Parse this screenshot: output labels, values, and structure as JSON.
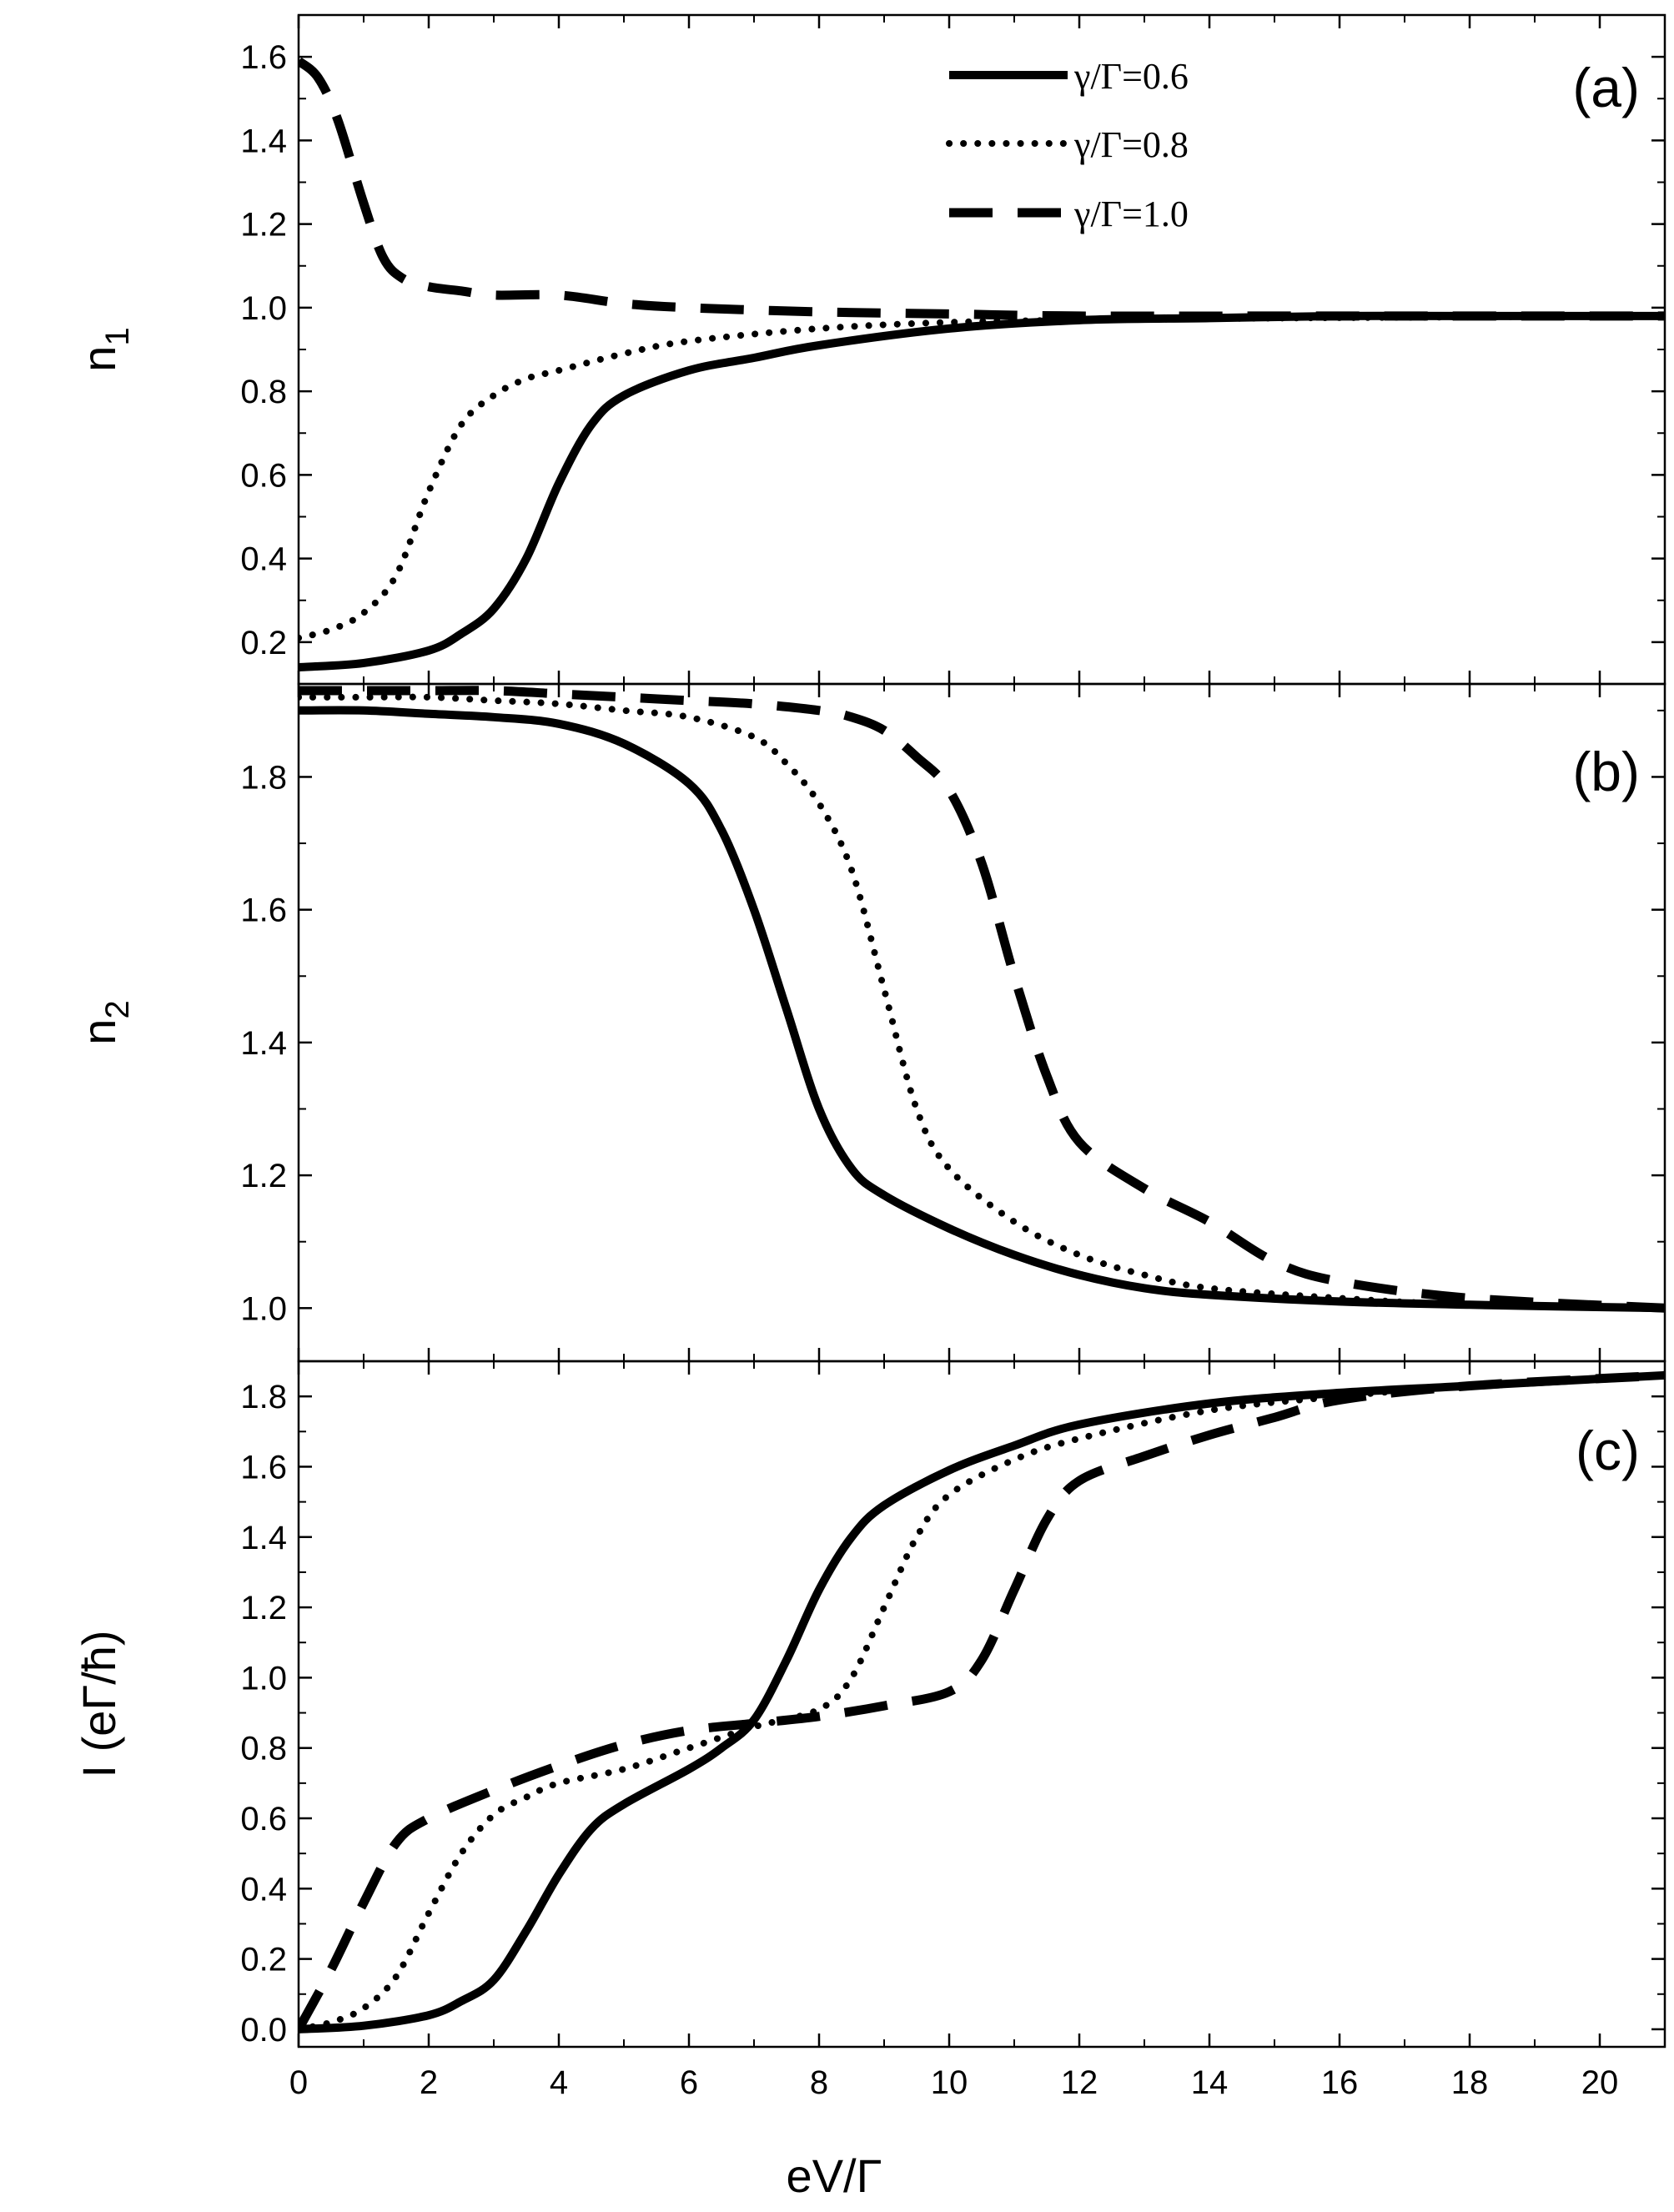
{
  "chart_data": {
    "type": "line",
    "title": "",
    "xlabel": "eV/Γ",
    "xlim": [
      0,
      21
    ],
    "x_ticks": [
      "0",
      "2",
      "4",
      "6",
      "8",
      "10",
      "12",
      "14",
      "16",
      "18",
      "20"
    ],
    "legend": {
      "placement": "top-center of panel (a)",
      "entries": [
        {
          "label": "γ/Γ=0.6",
          "style": "solid"
        },
        {
          "label": "γ/Γ=0.8",
          "style": "dotted"
        },
        {
          "label": "γ/Γ=1.0",
          "style": "dashed"
        }
      ]
    },
    "panels": [
      {
        "label": "(a)",
        "ylabel_main": "n",
        "ylabel_sub": "1",
        "ylim": [
          0.1,
          1.7
        ],
        "y_ticks": [
          "0.2",
          "0.4",
          "0.6",
          "0.8",
          "1.0",
          "1.2",
          "1.4",
          "1.6"
        ],
        "series": [
          {
            "name": "γ/Γ=0.6",
            "style": "solid",
            "x": [
              0,
              1,
              2,
              2.5,
              3,
              3.5,
              4,
              4.5,
              5,
              6,
              7,
              8,
              10,
              12,
              14,
              16,
              18,
              21
            ],
            "y": [
              0.14,
              0.15,
              0.18,
              0.22,
              0.28,
              0.4,
              0.58,
              0.72,
              0.79,
              0.85,
              0.88,
              0.91,
              0.95,
              0.97,
              0.975,
              0.98,
              0.98,
              0.98
            ]
          },
          {
            "name": "γ/Γ=0.8",
            "style": "dotted",
            "x": [
              0,
              0.5,
              1,
              1.5,
              2,
              2.5,
              3,
              3.5,
              4,
              5,
              6,
              8,
              10,
              12,
              15,
              21
            ],
            "y": [
              0.21,
              0.23,
              0.27,
              0.36,
              0.56,
              0.72,
              0.79,
              0.83,
              0.85,
              0.89,
              0.92,
              0.95,
              0.965,
              0.97,
              0.975,
              0.98
            ]
          },
          {
            "name": "γ/Γ=1.0",
            "style": "dashed",
            "x": [
              0,
              0.3,
              0.6,
              1,
              1.3,
              1.6,
              2,
              2.5,
              3,
              4,
              5,
              6,
              8,
              10,
              12,
              15,
              21
            ],
            "y": [
              1.59,
              1.55,
              1.45,
              1.25,
              1.12,
              1.07,
              1.05,
              1.04,
              1.03,
              1.03,
              1.01,
              1.0,
              0.99,
              0.985,
              0.98,
              0.98,
              0.98
            ]
          }
        ]
      },
      {
        "label": "(b)",
        "ylabel_main": "n",
        "ylabel_sub": "2",
        "ylim": [
          0.92,
          1.94
        ],
        "y_ticks": [
          "1.0",
          "1.2",
          "1.4",
          "1.6",
          "1.8"
        ],
        "series": [
          {
            "name": "γ/Γ=0.6",
            "style": "solid",
            "x": [
              0,
              1,
              2,
              3,
              4,
              5,
              6,
              6.5,
              7,
              7.5,
              8,
              8.5,
              9,
              10,
              11,
              12,
              13,
              14,
              16,
              18,
              21
            ],
            "y": [
              1.9,
              1.9,
              1.895,
              1.89,
              1.88,
              1.85,
              1.79,
              1.72,
              1.6,
              1.45,
              1.3,
              1.21,
              1.17,
              1.12,
              1.08,
              1.05,
              1.03,
              1.02,
              1.01,
              1.005,
              1.0
            ]
          },
          {
            "name": "γ/Γ=0.8",
            "style": "dotted",
            "x": [
              0,
              1,
              2,
              3,
              4,
              5,
              6,
              7,
              7.5,
              8,
              8.5,
              9,
              9.5,
              10,
              11,
              12,
              13,
              14,
              16,
              18,
              21
            ],
            "y": [
              1.92,
              1.92,
              1.92,
              1.915,
              1.91,
              1.9,
              1.89,
              1.86,
              1.82,
              1.76,
              1.66,
              1.48,
              1.3,
              1.21,
              1.13,
              1.08,
              1.05,
              1.03,
              1.015,
              1.005,
              1.0
            ]
          },
          {
            "name": "γ/Γ=1.0",
            "style": "dashed",
            "x": [
              0,
              1,
              2,
              3,
              4,
              5,
              6,
              7,
              8,
              8.5,
              9,
              9.5,
              10,
              10.5,
              11,
              11.5,
              12,
              13,
              14,
              15,
              16,
              18,
              21
            ],
            "y": [
              1.93,
              1.93,
              1.93,
              1.93,
              1.925,
              1.92,
              1.915,
              1.91,
              1.9,
              1.89,
              1.87,
              1.83,
              1.78,
              1.67,
              1.5,
              1.35,
              1.25,
              1.18,
              1.13,
              1.07,
              1.04,
              1.015,
              1.0
            ]
          }
        ]
      },
      {
        "label": "(c)",
        "ylabel_main": "I (eΓ/ħ)",
        "ylabel_sub": "",
        "ylim": [
          -0.05,
          1.9
        ],
        "y_ticks": [
          "0.0",
          "0.2",
          "0.4",
          "0.6",
          "0.8",
          "1.0",
          "1.2",
          "1.4",
          "1.6",
          "1.8"
        ],
        "series": [
          {
            "name": "γ/Γ=0.6",
            "style": "solid",
            "x": [
              0,
              1,
              2,
              2.5,
              3,
              3.5,
              4,
              4.5,
              5,
              6,
              6.5,
              7,
              7.5,
              8,
              8.5,
              9,
              10,
              11,
              12,
              14,
              16,
              18,
              21
            ],
            "y": [
              0.0,
              0.01,
              0.04,
              0.08,
              0.14,
              0.28,
              0.44,
              0.57,
              0.64,
              0.74,
              0.8,
              0.88,
              1.05,
              1.25,
              1.4,
              1.49,
              1.59,
              1.66,
              1.72,
              1.78,
              1.81,
              1.83,
              1.86
            ]
          },
          {
            "name": "γ/Γ=0.8",
            "style": "dotted",
            "x": [
              0,
              0.5,
              1,
              1.5,
              2,
              2.5,
              3,
              3.5,
              4,
              5,
              6,
              7,
              8,
              8.5,
              9,
              9.5,
              10,
              11,
              12,
              14,
              16,
              18,
              21
            ],
            "y": [
              0.0,
              0.02,
              0.06,
              0.15,
              0.33,
              0.5,
              0.61,
              0.66,
              0.7,
              0.74,
              0.8,
              0.86,
              0.91,
              1.0,
              1.2,
              1.4,
              1.52,
              1.62,
              1.68,
              1.76,
              1.8,
              1.83,
              1.86
            ]
          },
          {
            "name": "γ/Γ=1.0",
            "style": "dashed",
            "x": [
              0,
              0.5,
              1,
              1.5,
              2,
              3,
              4,
              5,
              6,
              7,
              8,
              9,
              10,
              10.5,
              11,
              11.5,
              12,
              13,
              14,
              15,
              16,
              18,
              21
            ],
            "y": [
              0.0,
              0.17,
              0.36,
              0.53,
              0.6,
              0.68,
              0.75,
              0.81,
              0.85,
              0.87,
              0.89,
              0.92,
              0.96,
              1.05,
              1.25,
              1.45,
              1.56,
              1.63,
              1.69,
              1.74,
              1.79,
              1.83,
              1.86
            ]
          }
        ]
      }
    ]
  }
}
